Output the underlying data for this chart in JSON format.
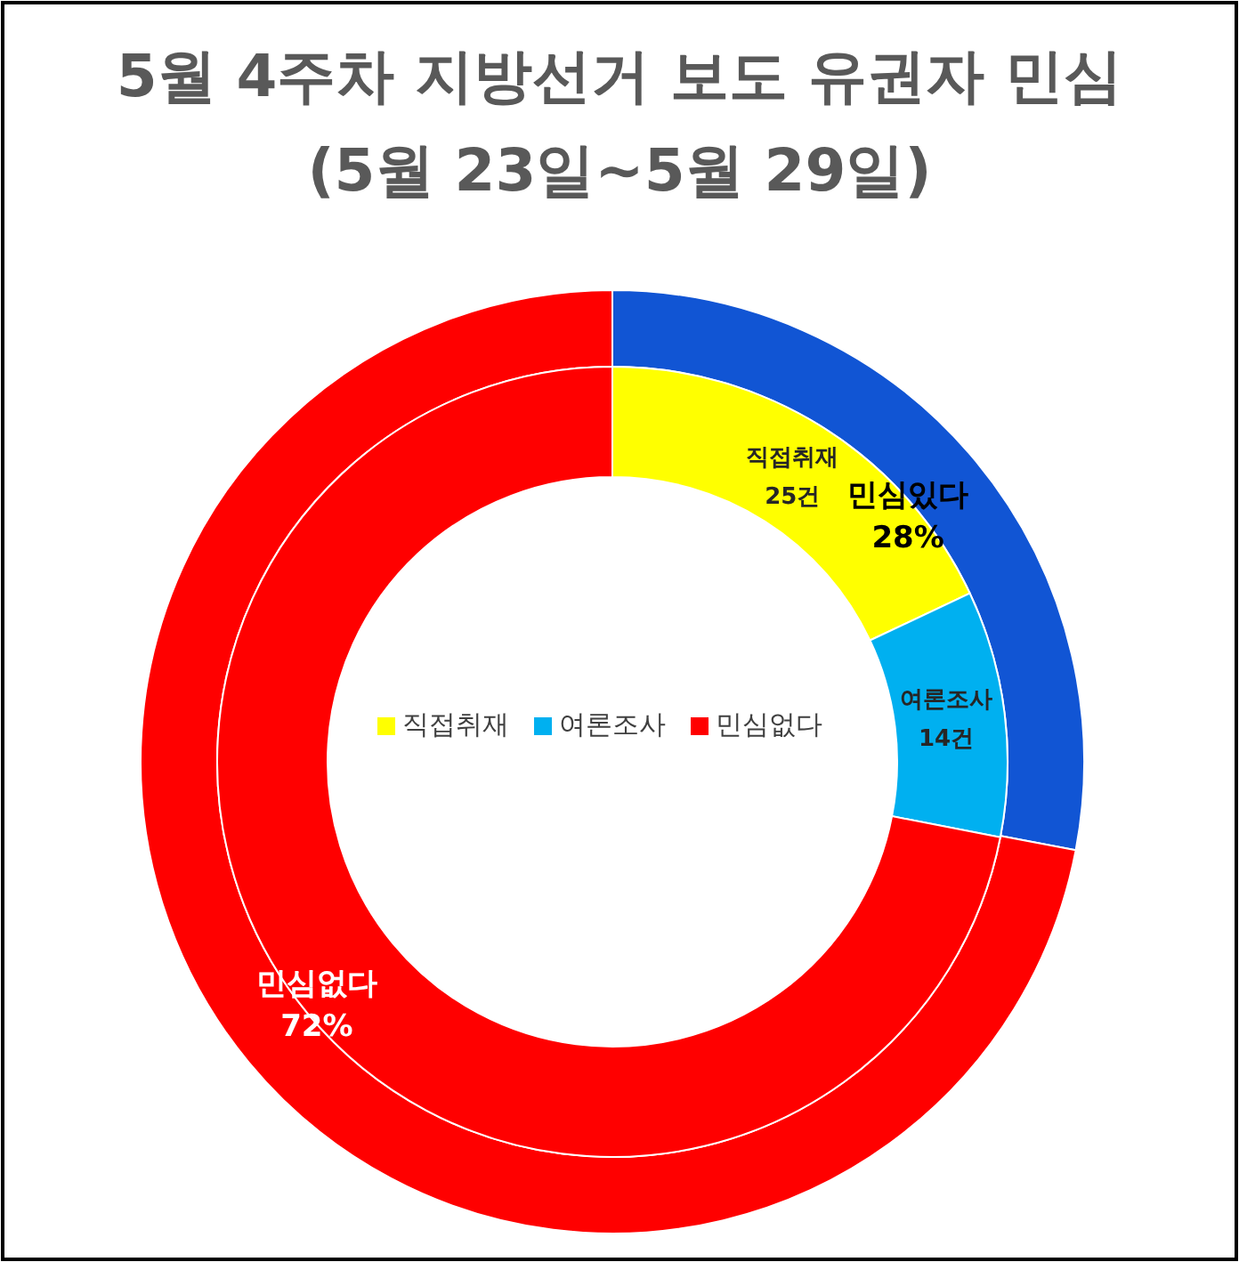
{
  "chart_data": [
    {
      "type": "donut",
      "title": "5월 4주차 지방선거 보도 유권자 민심",
      "subtitle": "(5월 23일~5월 29일)",
      "categories": [
        "민심있다",
        "민심없다"
      ],
      "values": [
        28,
        72
      ],
      "colors": [
        "#1155d4",
        "#ff0000"
      ],
      "value_labels": [
        "28%",
        "72%"
      ],
      "legend": false
    },
    {
      "type": "donut",
      "categories": [
        "직접취재",
        "여론조사",
        "민심없다"
      ],
      "values": [
        25,
        14,
        100
      ],
      "colors": [
        "#ffff00",
        "#00b0f0",
        "#ff0000"
      ],
      "value_labels": [
        "25건",
        "14건",
        null
      ],
      "legend": "center"
    }
  ]
}
